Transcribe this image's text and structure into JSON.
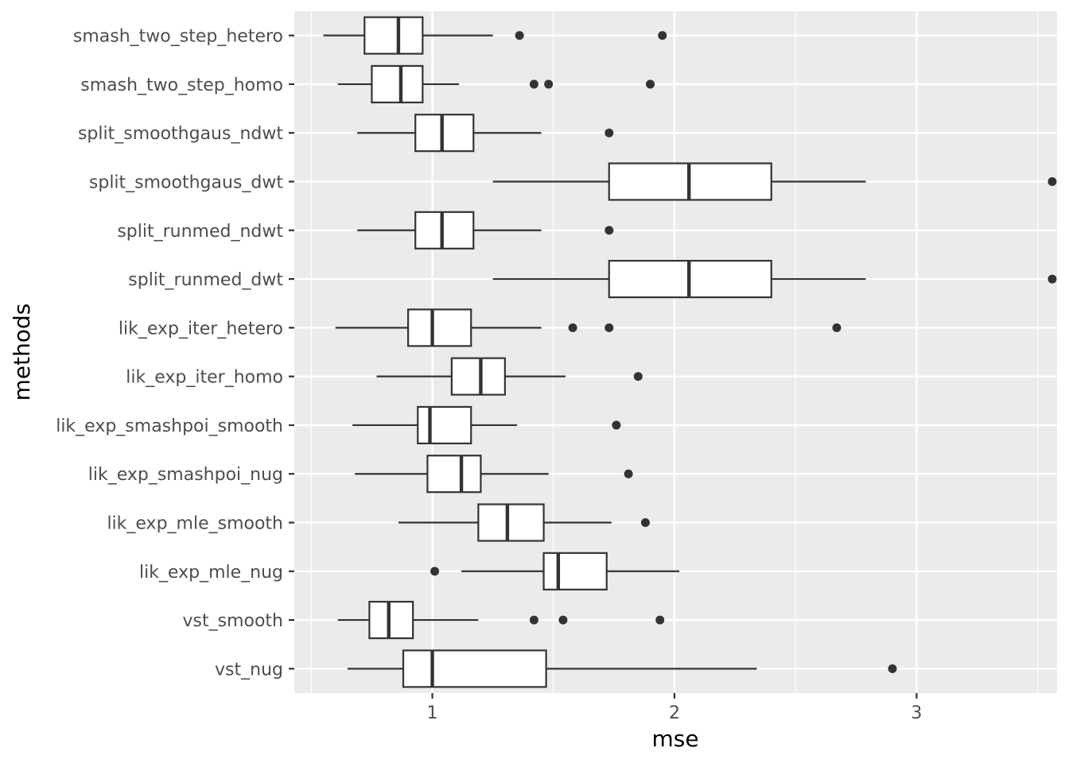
{
  "chart_data": {
    "type": "boxplot",
    "orientation": "horizontal",
    "xlabel": "mse",
    "ylabel": "methods",
    "xlim": [
      0.43,
      3.58
    ],
    "x_ticks": [
      1,
      2,
      3
    ],
    "x_minor_ticks": [
      0.5,
      1.5,
      2.5,
      3.5
    ],
    "grid": true,
    "legend": "none",
    "colors": {
      "panel": "#ebebeb",
      "grid": "#ffffff",
      "box_fill": "#ffffff",
      "box_stroke": "#333333",
      "outlier": "#333333"
    },
    "categories": [
      "smash_two_step_hetero",
      "smash_two_step_homo",
      "split_smoothgaus_ndwt",
      "split_smoothgaus_dwt",
      "split_runmed_ndwt",
      "split_runmed_dwt",
      "lik_exp_iter_hetero",
      "lik_exp_iter_homo",
      "lik_exp_smashpoi_smooth",
      "lik_exp_smashpoi_nug",
      "lik_exp_mle_smooth",
      "lik_exp_mle_nug",
      "vst_smooth",
      "vst_nug"
    ],
    "boxes": [
      {
        "method": "smash_two_step_hetero",
        "whisker_low": 0.55,
        "q1": 0.72,
        "median": 0.86,
        "q3": 0.96,
        "whisker_high": 1.25,
        "outliers": [
          1.36,
          1.95
        ]
      },
      {
        "method": "smash_two_step_homo",
        "whisker_low": 0.61,
        "q1": 0.75,
        "median": 0.87,
        "q3": 0.96,
        "whisker_high": 1.11,
        "outliers": [
          1.42,
          1.48,
          1.9
        ]
      },
      {
        "method": "split_smoothgaus_ndwt",
        "whisker_low": 0.69,
        "q1": 0.93,
        "median": 1.04,
        "q3": 1.17,
        "whisker_high": 1.45,
        "outliers": [
          1.73
        ]
      },
      {
        "method": "split_smoothgaus_dwt",
        "whisker_low": 1.25,
        "q1": 1.73,
        "median": 2.06,
        "q3": 2.4,
        "whisker_high": 2.79,
        "outliers": [
          3.56
        ]
      },
      {
        "method": "split_runmed_ndwt",
        "whisker_low": 0.69,
        "q1": 0.93,
        "median": 1.04,
        "q3": 1.17,
        "whisker_high": 1.45,
        "outliers": [
          1.73
        ]
      },
      {
        "method": "split_runmed_dwt",
        "whisker_low": 1.25,
        "q1": 1.73,
        "median": 2.06,
        "q3": 2.4,
        "whisker_high": 2.79,
        "outliers": [
          3.56
        ]
      },
      {
        "method": "lik_exp_iter_hetero",
        "whisker_low": 0.6,
        "q1": 0.9,
        "median": 1.0,
        "q3": 1.16,
        "whisker_high": 1.45,
        "outliers": [
          1.58,
          1.73,
          2.67
        ]
      },
      {
        "method": "lik_exp_iter_homo",
        "whisker_low": 0.77,
        "q1": 1.08,
        "median": 1.2,
        "q3": 1.3,
        "whisker_high": 1.55,
        "outliers": [
          1.85
        ]
      },
      {
        "method": "lik_exp_smashpoi_smooth",
        "whisker_low": 0.67,
        "q1": 0.94,
        "median": 0.99,
        "q3": 1.16,
        "whisker_high": 1.35,
        "outliers": [
          1.76
        ]
      },
      {
        "method": "lik_exp_smashpoi_nug",
        "whisker_low": 0.68,
        "q1": 0.98,
        "median": 1.12,
        "q3": 1.2,
        "whisker_high": 1.48,
        "outliers": [
          1.81
        ]
      },
      {
        "method": "lik_exp_mle_smooth",
        "whisker_low": 0.86,
        "q1": 1.19,
        "median": 1.31,
        "q3": 1.46,
        "whisker_high": 1.74,
        "outliers": [
          1.88
        ]
      },
      {
        "method": "lik_exp_mle_nug",
        "whisker_low": 1.12,
        "q1": 1.46,
        "median": 1.52,
        "q3": 1.72,
        "whisker_high": 2.02,
        "outliers": [
          1.01
        ]
      },
      {
        "method": "vst_smooth",
        "whisker_low": 0.61,
        "q1": 0.74,
        "median": 0.82,
        "q3": 0.92,
        "whisker_high": 1.19,
        "outliers": [
          1.42,
          1.54,
          1.94
        ]
      },
      {
        "method": "vst_nug",
        "whisker_low": 0.65,
        "q1": 0.88,
        "median": 1.0,
        "q3": 1.47,
        "whisker_high": 2.34,
        "outliers": [
          2.9
        ]
      }
    ]
  }
}
